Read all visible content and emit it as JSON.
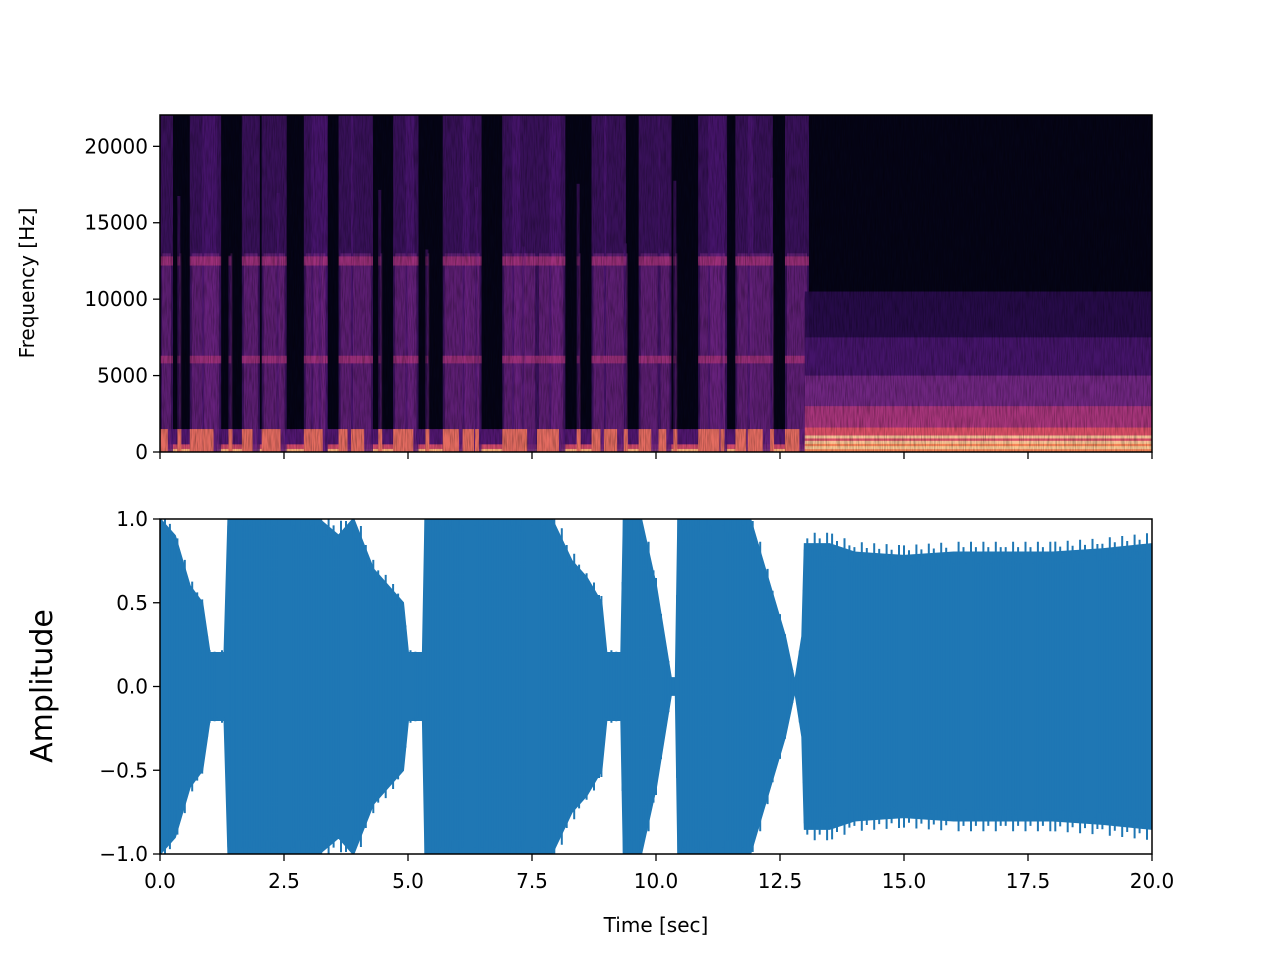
{
  "chart_data": [
    {
      "type": "heatmap",
      "kind": "spectrogram",
      "colormap": "magma",
      "xlabel": "",
      "ylabel": "Frequency [Hz]",
      "xlim": [
        0,
        20
      ],
      "ylim": [
        0,
        22050
      ],
      "y_ticks": [
        {
          "value": 0,
          "label": "0"
        },
        {
          "value": 5000,
          "label": "5000"
        },
        {
          "value": 10000,
          "label": "10000"
        },
        {
          "value": 15000,
          "label": "15000"
        },
        {
          "value": 20000,
          "label": "20000"
        }
      ],
      "x_ticks": [
        0,
        2.5,
        5,
        7.5,
        10,
        12.5,
        15,
        17.5,
        20
      ],
      "x_tick_labels_shown": false,
      "onsets_sec": [
        0.0,
        0.35,
        0.6,
        0.85,
        1.38,
        1.65,
        2.05,
        2.35,
        2.9,
        3.05,
        3.2,
        3.6,
        3.85,
        4.4,
        4.7,
        4.95,
        5.35,
        5.7,
        6.1,
        6.35,
        6.9,
        7.1,
        7.3,
        7.6,
        7.85,
        8.4,
        8.7,
        8.95,
        9.35,
        9.65,
        10.05,
        10.35,
        10.85,
        11.05,
        11.3,
        11.6,
        11.85,
        12.3,
        12.6
      ],
      "segments": [
        {
          "start": 0,
          "end": 13.0,
          "texture": "broadband percussive onsets with harmonic bands near 6000 Hz and 12500 Hz"
        },
        {
          "start": 13.0,
          "end": 20.0,
          "texture": "dense energy below ~10000 Hz, strongest below 2000 Hz"
        }
      ],
      "grid": false
    },
    {
      "type": "area",
      "kind": "waveform",
      "color": "#1f77b4",
      "xlabel": "Time [sec]",
      "ylabel": "Amplitude",
      "xlim": [
        0,
        20
      ],
      "ylim": [
        -1,
        1
      ],
      "x_ticks": [
        {
          "value": 0,
          "label": "0.0"
        },
        {
          "value": 2.5,
          "label": "2.5"
        },
        {
          "value": 5,
          "label": "5.0"
        },
        {
          "value": 7.5,
          "label": "7.5"
        },
        {
          "value": 10,
          "label": "10.0"
        },
        {
          "value": 12.5,
          "label": "12.5"
        },
        {
          "value": 15,
          "label": "15.0"
        },
        {
          "value": 17.5,
          "label": "17.5"
        },
        {
          "value": 20,
          "label": "20.0"
        }
      ],
      "y_ticks": [
        {
          "value": -1,
          "label": "−1.0"
        },
        {
          "value": -0.5,
          "label": "−0.5"
        },
        {
          "value": 0,
          "label": "0.0"
        },
        {
          "value": 0.5,
          "label": "0.5"
        },
        {
          "value": 1,
          "label": "1.0"
        }
      ],
      "envelope": [
        [
          0.0,
          1.0
        ],
        [
          0.3,
          0.9
        ],
        [
          0.6,
          0.6
        ],
        [
          0.85,
          0.5
        ],
        [
          1.0,
          0.2
        ],
        [
          1.3,
          0.2
        ],
        [
          1.38,
          1.0
        ],
        [
          1.7,
          1.0
        ],
        [
          2.1,
          1.0
        ],
        [
          2.4,
          1.0
        ],
        [
          2.9,
          1.0
        ],
        [
          3.2,
          1.0
        ],
        [
          3.6,
          0.9
        ],
        [
          3.9,
          1.0
        ],
        [
          4.3,
          0.7
        ],
        [
          4.6,
          0.6
        ],
        [
          4.9,
          0.5
        ],
        [
          5.0,
          0.2
        ],
        [
          5.3,
          0.2
        ],
        [
          5.35,
          1.0
        ],
        [
          5.7,
          1.0
        ],
        [
          6.1,
          1.0
        ],
        [
          6.4,
          1.0
        ],
        [
          6.9,
          1.0
        ],
        [
          7.2,
          1.0
        ],
        [
          7.6,
          1.0
        ],
        [
          7.9,
          1.0
        ],
        [
          8.3,
          0.75
        ],
        [
          8.6,
          0.65
        ],
        [
          8.9,
          0.5
        ],
        [
          9.0,
          0.2
        ],
        [
          9.3,
          0.2
        ],
        [
          9.35,
          1.0
        ],
        [
          9.7,
          1.0
        ],
        [
          10.0,
          0.6
        ],
        [
          10.3,
          0.05
        ],
        [
          10.4,
          0.05
        ],
        [
          10.45,
          1.0
        ],
        [
          10.9,
          1.0
        ],
        [
          11.3,
          1.0
        ],
        [
          11.6,
          1.0
        ],
        [
          11.9,
          1.0
        ],
        [
          12.2,
          0.7
        ],
        [
          12.6,
          0.3
        ],
        [
          12.8,
          0.02
        ],
        [
          12.95,
          0.3
        ],
        [
          13.0,
          0.85
        ],
        [
          13.5,
          0.85
        ],
        [
          14.0,
          0.8
        ],
        [
          15.0,
          0.78
        ],
        [
          16.0,
          0.8
        ],
        [
          17.0,
          0.8
        ],
        [
          18.0,
          0.8
        ],
        [
          19.0,
          0.82
        ],
        [
          20.0,
          0.85
        ]
      ],
      "grid": false
    }
  ]
}
